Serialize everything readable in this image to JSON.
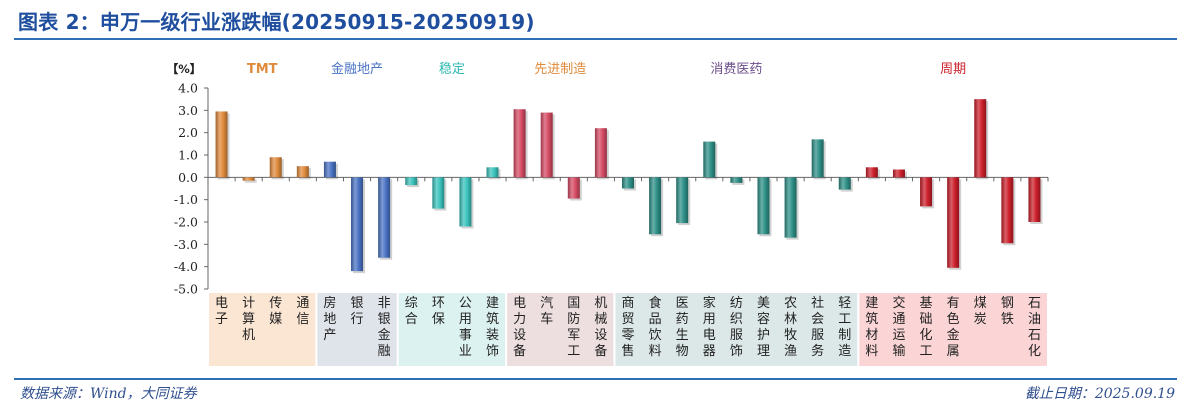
{
  "title": "图表 2：申万一级行业涨跌幅(20250915-20250919)",
  "chart_data": {
    "type": "bar",
    "unit_label": "【%】",
    "ylim": [
      -5,
      4
    ],
    "yticks": [
      "4.0",
      "3.0",
      "2.0",
      "1.0",
      "0.0",
      "-1.0",
      "-2.0",
      "-3.0",
      "-4.0",
      "-5.0"
    ],
    "groups": [
      {
        "name": "TMT",
        "color": "#e08a3c",
        "label_color": "#e08a3c",
        "band_color": "#fbe5d3",
        "categories": [
          "电子",
          "计算机",
          "传媒",
          "通信"
        ],
        "values": [
          2.95,
          -0.15,
          0.9,
          0.5
        ]
      },
      {
        "name": "金融地产",
        "color": "#4a73c4",
        "label_color": "#4a73c4",
        "band_color": "#dfe3ea",
        "categories": [
          "房地产",
          "银行",
          "非银金融"
        ],
        "values": [
          0.7,
          -4.2,
          -3.6
        ]
      },
      {
        "name": "稳定",
        "color": "#3bc3bd",
        "label_color": "#2eb8b0",
        "band_color": "#dcf2f0",
        "categories": [
          "综合",
          "环保",
          "公用事业",
          "建筑装饰"
        ],
        "values": [
          -0.35,
          -1.4,
          -2.2,
          0.45
        ]
      },
      {
        "name": "先进制造",
        "color": "#d64b63",
        "label_color": "#e08a3c",
        "band_color": "#eddfe0",
        "categories": [
          "电力设备",
          "汽车",
          "国防军工",
          "机械设备"
        ],
        "values": [
          3.05,
          2.9,
          -0.95,
          2.2
        ]
      },
      {
        "name": "消费医药",
        "color": "#2e9088",
        "label_color": "#6b4d8a",
        "band_color": "#dce8e8",
        "categories": [
          "商贸零售",
          "食品饮料",
          "医药生物",
          "家用电器",
          "纺织服饰",
          "美容护理",
          "农林牧渔",
          "社会服务",
          "轻工制造"
        ],
        "values": [
          -0.5,
          -2.55,
          -2.05,
          1.6,
          -0.25,
          -2.55,
          -2.7,
          1.7,
          -0.55
        ]
      },
      {
        "name": "周期",
        "color": "#cc1f2a",
        "label_color": "#cc1f2a",
        "band_color": "#fbd5d6",
        "categories": [
          "建筑材料",
          "交通运输",
          "基础化工",
          "有色金属",
          "煤炭",
          "钢铁",
          "石油石化"
        ],
        "values": [
          0.45,
          0.35,
          -1.3,
          -4.05,
          3.5,
          -2.95,
          -2.0
        ]
      }
    ]
  },
  "footer": {
    "source": "数据来源：Wind，大同证券",
    "as_of": "截止日期：2025.09.19"
  }
}
